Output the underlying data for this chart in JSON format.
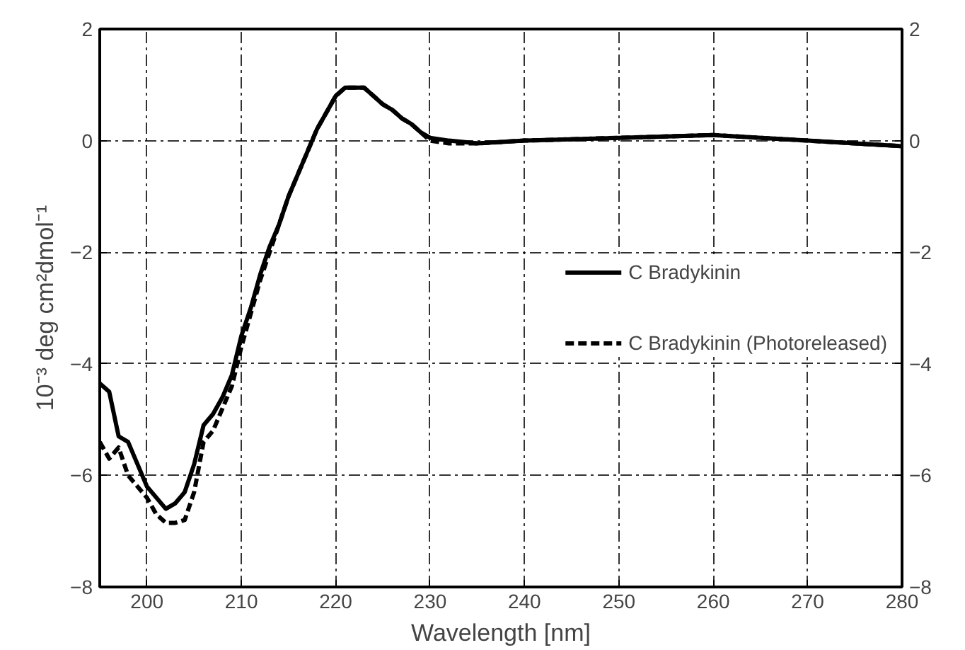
{
  "chart_data": {
    "type": "line",
    "xlabel": "Wavelength [nm]",
    "ylabel": "10⁻³ deg cm²dmol⁻¹",
    "xlim": [
      195,
      280
    ],
    "xticks": [
      200,
      210,
      220,
      230,
      240,
      250,
      260,
      270,
      280
    ],
    "ylim": [
      -8,
      2
    ],
    "yticks": [
      -8,
      -6,
      -4,
      -2,
      0,
      2
    ],
    "y2lim": [
      -8,
      2
    ],
    "y2ticks": [
      -8,
      -6,
      -4,
      -2,
      0,
      2
    ],
    "grid": true,
    "legend": "right",
    "series": [
      {
        "name": "C Bradykinin",
        "color": "#000000",
        "line_style": "solid",
        "x": [
          195,
          196,
          197,
          198,
          199,
          200,
          201,
          202,
          203,
          204,
          205,
          206,
          207,
          208,
          209,
          210,
          211,
          212,
          213,
          214,
          215,
          216,
          217,
          218,
          219,
          220,
          221,
          222,
          223,
          224,
          225,
          226,
          227,
          228,
          229,
          230,
          232,
          235,
          240,
          250,
          260,
          270,
          275,
          280
        ],
        "values": [
          -4.35,
          -4.5,
          -5.3,
          -5.4,
          -5.8,
          -6.2,
          -6.4,
          -6.6,
          -6.5,
          -6.3,
          -5.8,
          -5.1,
          -4.9,
          -4.6,
          -4.2,
          -3.5,
          -3.0,
          -2.4,
          -1.9,
          -1.5,
          -1.0,
          -0.6,
          -0.2,
          0.2,
          0.5,
          0.8,
          0.95,
          0.95,
          0.95,
          0.8,
          0.65,
          0.55,
          0.4,
          0.3,
          0.15,
          0.05,
          0.0,
          -0.05,
          0.0,
          0.05,
          0.1,
          0.0,
          -0.05,
          -0.1
        ]
      },
      {
        "name": "C Bradykinin (Photoreleased)",
        "color": "#000000",
        "line_style": "dashed",
        "x": [
          195,
          196,
          197,
          198,
          199,
          200,
          201,
          202,
          203,
          204,
          205,
          206,
          207,
          208,
          209,
          210,
          211,
          212,
          213,
          214,
          215,
          216,
          217,
          218,
          219,
          220,
          221,
          222,
          223,
          224,
          225,
          226,
          227,
          228,
          229,
          230,
          232,
          235,
          240,
          250,
          260,
          270,
          275,
          280
        ],
        "values": [
          -5.4,
          -5.7,
          -5.5,
          -6.0,
          -6.2,
          -6.4,
          -6.7,
          -6.85,
          -6.85,
          -6.8,
          -6.3,
          -5.4,
          -5.2,
          -4.8,
          -4.4,
          -3.7,
          -3.1,
          -2.5,
          -2.0,
          -1.5,
          -1.0,
          -0.6,
          -0.2,
          0.2,
          0.5,
          0.8,
          0.95,
          0.95,
          0.95,
          0.8,
          0.65,
          0.55,
          0.4,
          0.3,
          0.15,
          0.0,
          -0.05,
          -0.05,
          0.0,
          0.05,
          0.1,
          0.0,
          -0.05,
          -0.1
        ]
      }
    ]
  }
}
